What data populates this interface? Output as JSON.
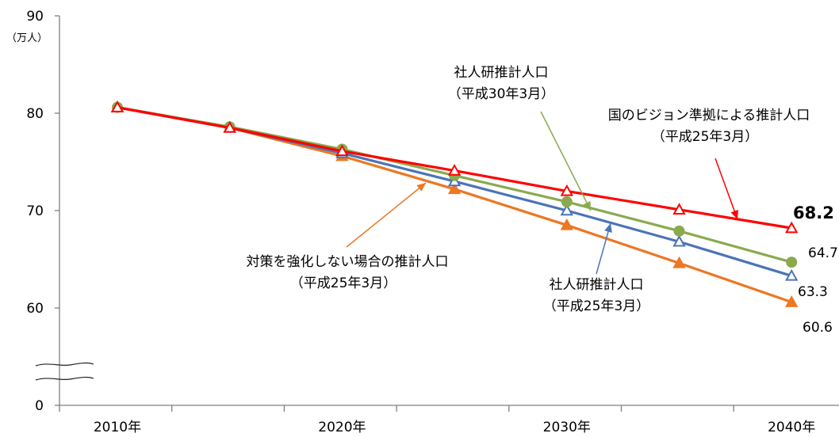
{
  "chart_data": {
    "type": "line",
    "unit_label": "（万人）",
    "x": [
      "2010年",
      "2015",
      "2020年",
      "2025",
      "2030年",
      "2035",
      "2040年"
    ],
    "x_tick_labels": [
      "2010年",
      "2020年",
      "2030年",
      "2040年"
    ],
    "y_tick_labels": [
      "0",
      "60",
      "70",
      "80",
      "90"
    ],
    "ylim": [
      0,
      90
    ],
    "y_axis_break": true,
    "grid": false,
    "series": [
      {
        "color": "#ff0000",
        "marker": "open-triangle",
        "values": [
          80.6,
          78.5,
          76.1,
          74.1,
          72.0,
          70.1,
          68.2
        ]
      },
      {
        "color": "#8aaa4e",
        "marker": "filled-circle",
        "values": [
          80.6,
          78.6,
          76.3,
          73.6,
          70.9,
          67.9,
          64.7
        ]
      },
      {
        "color": "#4a74b6",
        "marker": "open-triangle",
        "values": [
          80.6,
          78.5,
          75.9,
          73.0,
          70.0,
          66.8,
          63.3
        ]
      },
      {
        "color": "#ed7722",
        "marker": "filled-triangle",
        "values": [
          80.6,
          78.5,
          75.6,
          72.2,
          68.5,
          64.6,
          60.6
        ]
      }
    ],
    "end_labels": [
      {
        "text": "68.2",
        "color": "#000000",
        "bold": true
      },
      {
        "text": "64.7",
        "color": "#000000",
        "bold": false
      },
      {
        "text": "63.3",
        "color": "#000000",
        "bold": false
      },
      {
        "text": "60.6",
        "color": "#000000",
        "bold": false
      }
    ],
    "annotations": [
      {
        "lines": [
          "国のビジョン準拠による推計人口",
          "（平成25年3月）"
        ],
        "arrow_color": "#ff0000"
      },
      {
        "lines": [
          "社人研推計人口",
          "（平成30年3月）"
        ],
        "arrow_color": "#8aaa4e"
      },
      {
        "lines": [
          "社人研推計人口",
          "（平成25年3月）"
        ],
        "arrow_color": "#4a74b6"
      },
      {
        "lines": [
          "対策を強化しない場合の推計人口",
          "（平成25年3月）"
        ],
        "arrow_color": "#ed7722"
      }
    ]
  }
}
